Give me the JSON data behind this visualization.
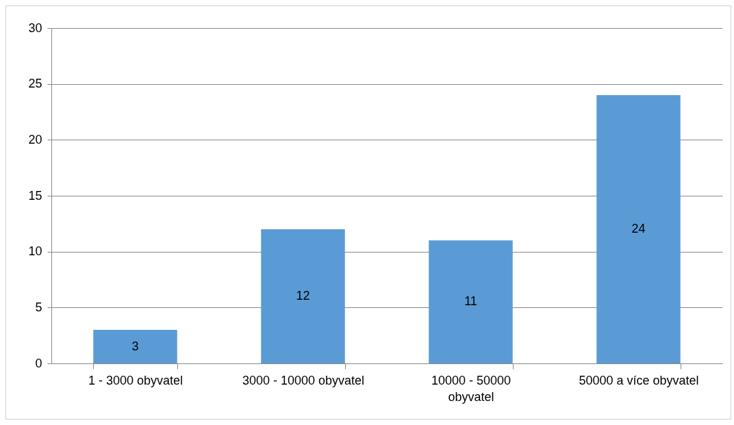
{
  "chart_data": {
    "type": "bar",
    "categories": [
      "1 - 3000 obyvatel",
      "3000 - 10000 obyvatel",
      "10000 - 50000 obyvatel",
      "50000 a více obyvatel"
    ],
    "values": [
      3,
      12,
      11,
      24
    ],
    "color": "#5b9bd5",
    "ylim": [
      0,
      30
    ],
    "yticks": [
      0,
      5,
      10,
      15,
      20,
      25,
      30
    ],
    "grid": "y",
    "data_labels": true
  }
}
